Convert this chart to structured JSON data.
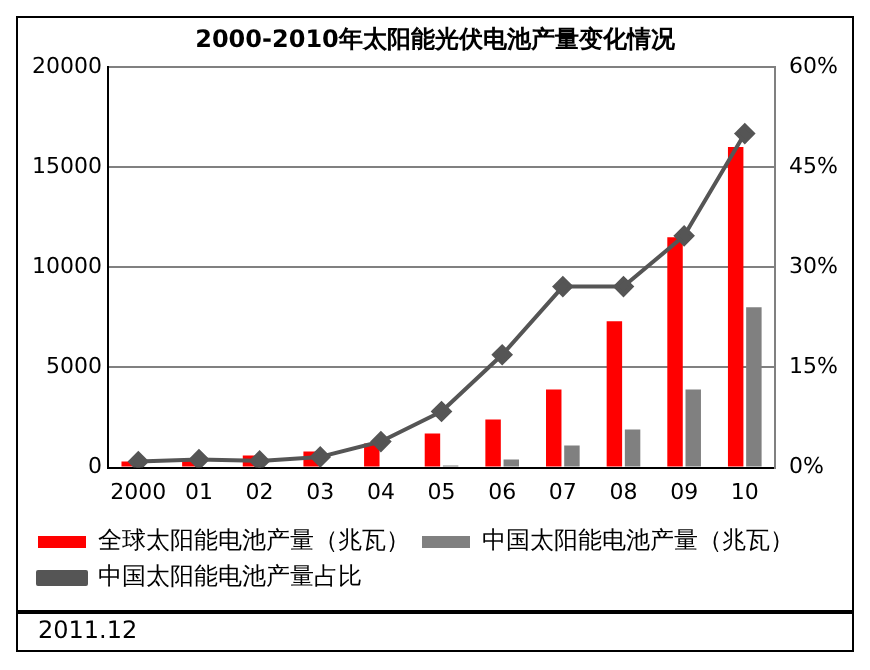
{
  "chart_data": {
    "type": "bar",
    "title": "2000-2010年太阳能光伏电池产量变化情况",
    "categories": [
      "2000",
      "01",
      "02",
      "03",
      "04",
      "05",
      "06",
      "07",
      "08",
      "09",
      "10"
    ],
    "series": [
      {
        "name": "全球太阳能电池产量（兆瓦）",
        "color": "#ff0000",
        "values": [
          300,
          400,
          600,
          800,
          1200,
          1700,
          2400,
          3900,
          7300,
          11500,
          16000
        ]
      },
      {
        "name": "中国太阳能电池产量（兆瓦）",
        "color": "#808080",
        "values": [
          null,
          null,
          null,
          null,
          null,
          100,
          400,
          1100,
          1900,
          3900,
          8000
        ]
      },
      {
        "name": "中国太阳能电池产量占比",
        "color": "#555555",
        "type": "line",
        "axis": "y2",
        "marker": "diamond",
        "values": [
          0.9,
          1.2,
          1,
          1.6,
          3.9,
          8.4,
          16.9,
          27.1,
          27.1,
          34.7,
          50
        ]
      }
    ],
    "ylim": [
      0,
      20000
    ],
    "yticks": [
      0,
      5000,
      10000,
      15000,
      20000
    ],
    "y2lim": [
      0,
      60
    ],
    "y2ticks": [
      {
        "value": 0,
        "label": "0%"
      },
      {
        "value": 15,
        "label": "15%"
      },
      {
        "value": 30,
        "label": "30%"
      },
      {
        "value": 45,
        "label": "45%"
      },
      {
        "value": 60,
        "label": "60%"
      }
    ],
    "grid": "y",
    "legend": "bottom",
    "annotations": [
      "2011.12"
    ]
  }
}
